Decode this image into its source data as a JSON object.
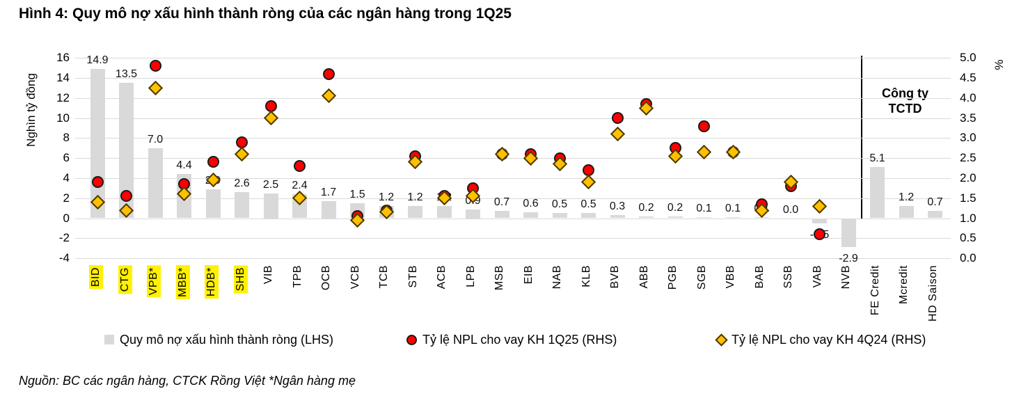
{
  "title": "Hình 4: Quy mô nợ xấu hình thành ròng của các ngân hàng trong 1Q25",
  "source_note": "Nguồn: BC các ngân hàng, CTCK Rồng Việt *Ngân hàng mẹ",
  "chart_data": {
    "type": "bar",
    "subtype": "combo bar + scatter markers, dual axis",
    "left_axis": {
      "title": "Nghìn tỷ đồng",
      "min": -4,
      "max": 16,
      "tick_step": 2
    },
    "right_axis": {
      "title": "%",
      "min": 0.0,
      "max": 5.0,
      "tick_step": 0.5
    },
    "section_label": "Công ty TCTD",
    "categories": [
      "BID",
      "CTG",
      "VPB*",
      "MBB*",
      "HDB*",
      "SHB",
      "VIB",
      "TPB",
      "OCB",
      "VCB",
      "TCB",
      "STB",
      "ACB",
      "LPB",
      "MSB",
      "EIB",
      "NAB",
      "KLB",
      "BVB",
      "ABB",
      "PGB",
      "SGB",
      "VBB",
      "BAB",
      "SSB",
      "VAB",
      "NVB",
      "FE Credit",
      "Mcredit",
      "HD Saison"
    ],
    "highlighted_categories": [
      "BID",
      "CTG",
      "VPB*",
      "MBB*",
      "HDB*",
      "SHB"
    ],
    "separator_after_index": 26,
    "bar_series": {
      "name": "Quy mô nợ xấu hình thành ròng (LHS)",
      "color": "#d9d9d9",
      "axis": "left",
      "values": [
        14.9,
        13.5,
        7.0,
        4.4,
        2.9,
        2.6,
        2.5,
        2.4,
        1.7,
        1.5,
        1.2,
        1.2,
        1.2,
        0.9,
        0.7,
        0.6,
        0.5,
        0.5,
        0.3,
        0.2,
        0.2,
        0.1,
        0.1,
        0.1,
        0.0,
        -0.5,
        -2.9,
        5.1,
        1.2,
        0.7
      ]
    },
    "marker_series": [
      {
        "name": "Tỷ lệ NPL cho vay KH 1Q25 (RHS)",
        "marker": "red-circle",
        "color": "#fe0000",
        "axis": "right",
        "values": [
          1.9,
          1.55,
          4.8,
          1.85,
          2.4,
          2.9,
          3.8,
          2.3,
          4.6,
          1.05,
          1.2,
          2.55,
          1.55,
          1.75,
          2.6,
          2.6,
          2.5,
          2.2,
          3.5,
          3.85,
          2.75,
          3.3,
          2.65,
          1.35,
          1.8,
          0.6,
          null,
          null,
          null,
          null
        ]
      },
      {
        "name": "Tỷ lệ NPL cho vay KH 4Q24 (RHS)",
        "marker": "yellow-diamond",
        "color": "#ffc000",
        "axis": "right",
        "values": [
          1.4,
          1.2,
          4.25,
          1.6,
          1.95,
          2.6,
          3.5,
          1.5,
          4.05,
          0.95,
          1.15,
          2.4,
          1.5,
          1.55,
          2.6,
          2.5,
          2.35,
          1.9,
          3.1,
          3.75,
          2.55,
          2.65,
          2.65,
          1.2,
          1.9,
          1.3,
          null,
          null,
          null,
          null
        ]
      }
    ],
    "highlight_color": "#fff100",
    "grid_color": "#d9d9d9"
  }
}
